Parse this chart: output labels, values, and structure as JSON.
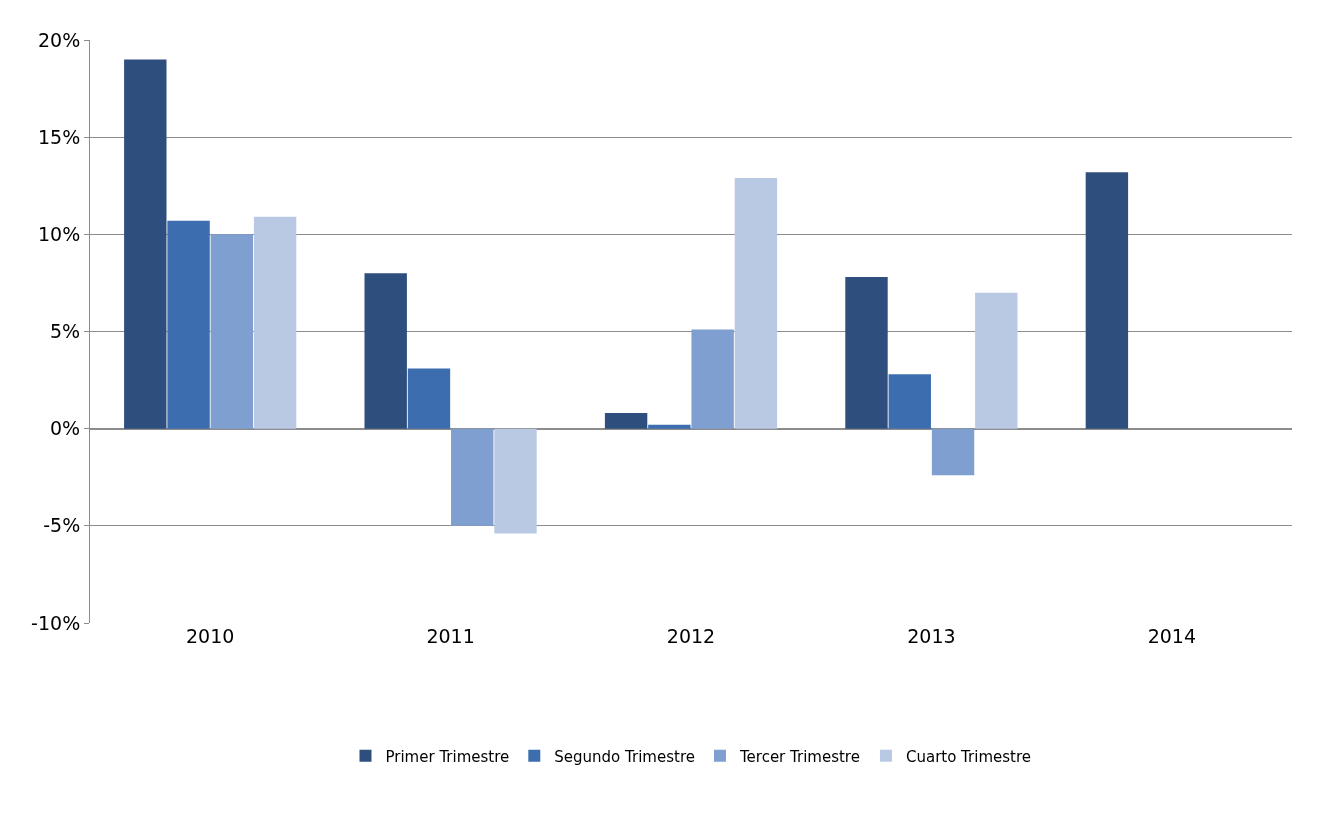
{
  "chart_data": {
    "type": "bar",
    "categories": [
      "2010",
      "2011",
      "2012",
      "2013",
      "2014"
    ],
    "series": [
      {
        "name": "Primer Trimestre",
        "color": "#2e4f7e",
        "values": [
          19.0,
          8.0,
          0.8,
          7.8,
          13.2
        ]
      },
      {
        "name": "Segundo Trimestre",
        "color": "#3c6eaf",
        "values": [
          10.7,
          3.1,
          0.2,
          2.8,
          null
        ]
      },
      {
        "name": "Tercer Trimestre",
        "color": "#7f9fd0",
        "values": [
          10.0,
          -5.0,
          5.1,
          -2.4,
          null
        ]
      },
      {
        "name": "Cuarto Trimestre",
        "color": "#b9c9e4",
        "values": [
          10.9,
          -5.4,
          12.9,
          7.0,
          null
        ]
      }
    ],
    "ylim": [
      -10,
      20
    ],
    "yticks": [
      {
        "value": -10,
        "label": "-10%"
      },
      {
        "value": -5,
        "label": "-5%"
      },
      {
        "value": 0,
        "label": "0%"
      },
      {
        "value": 5,
        "label": "5%"
      },
      {
        "value": 10,
        "label": "10%"
      },
      {
        "value": 15,
        "label": "15%"
      },
      {
        "value": 20,
        "label": "20%"
      }
    ],
    "grid": "y",
    "legend": "bottom"
  }
}
